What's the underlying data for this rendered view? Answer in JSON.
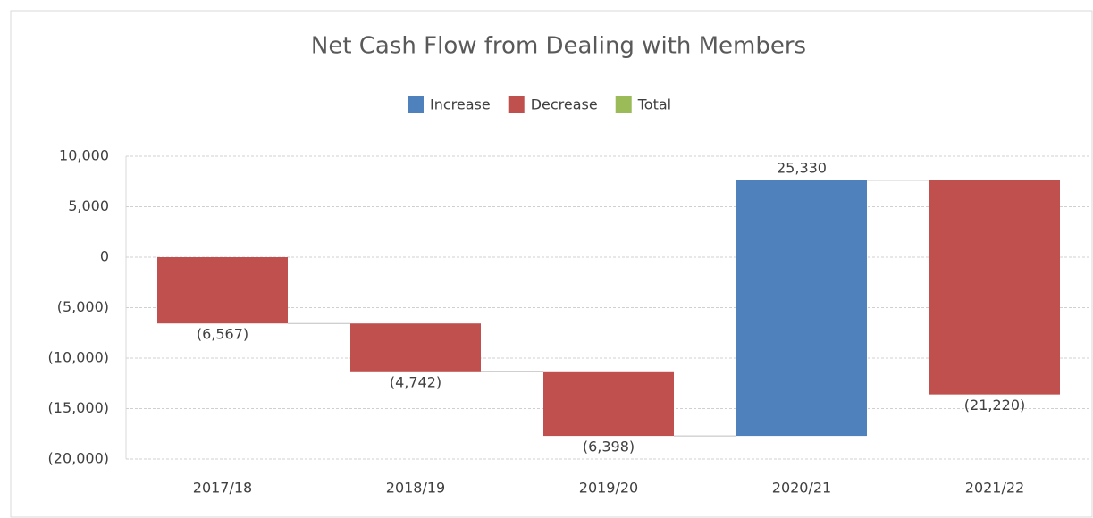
{
  "chart_data": {
    "type": "waterfall",
    "title": "Net Cash Flow from Dealing with Members",
    "legend": [
      {
        "name": "Increase",
        "color": "#4f81bd"
      },
      {
        "name": "Decrease",
        "color": "#c0504d"
      },
      {
        "name": "Total",
        "color": "#9bbb59"
      }
    ],
    "categories": [
      "2017/18",
      "2018/19",
      "2019/20",
      "2020/21",
      "2021/22"
    ],
    "values": [
      -6567,
      -4742,
      -6398,
      25330,
      -21220
    ],
    "value_labels": [
      "(6,567)",
      "(4,742)",
      "(6,398)",
      "25,330",
      "(21,220)"
    ],
    "ylim": [
      -20000,
      10000
    ],
    "yticks": [
      {
        "value": -20000,
        "label": "(20,000)"
      },
      {
        "value": -15000,
        "label": "(15,000)"
      },
      {
        "value": -10000,
        "label": "(10,000)"
      },
      {
        "value": -5000,
        "label": "(5,000)"
      },
      0,
      {
        "value": 5000,
        "label": "5,000"
      },
      {
        "value": 10000,
        "label": "10,000"
      }
    ],
    "grid": true
  }
}
